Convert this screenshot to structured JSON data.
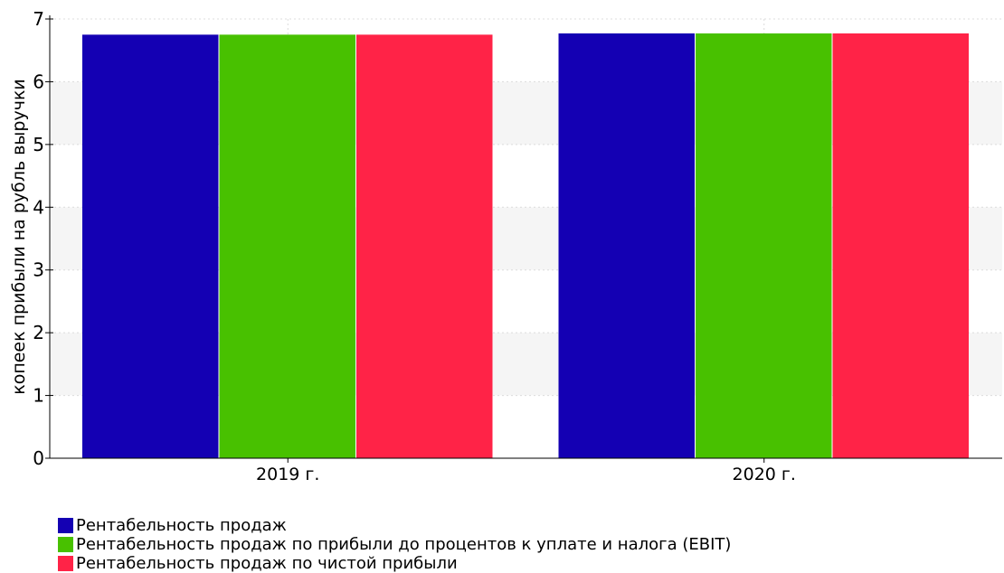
{
  "chart_data": {
    "type": "bar",
    "categories": [
      "2019 г.",
      "2020 г."
    ],
    "series": [
      {
        "name": "Рентабельность продаж",
        "values": [
          6.75,
          6.77
        ],
        "color": "#1400B3"
      },
      {
        "name": "Рентабельность продаж по прибыли до процентов к уплате и налога (EBIT)",
        "values": [
          6.75,
          6.77
        ],
        "color": "#48C100"
      },
      {
        "name": "Рентабельность продаж по чистой прибыли",
        "values": [
          6.75,
          6.77
        ],
        "color": "#FF2347"
      }
    ],
    "title": "",
    "xlabel": "",
    "ylabel": "копеек прибыли на рубль выручки",
    "ylim": [
      0,
      7
    ],
    "yticks": [
      0,
      1,
      2,
      3,
      4,
      5,
      6,
      7
    ],
    "grid": "alternating horizontal bands",
    "legend_position": "bottom-left"
  }
}
